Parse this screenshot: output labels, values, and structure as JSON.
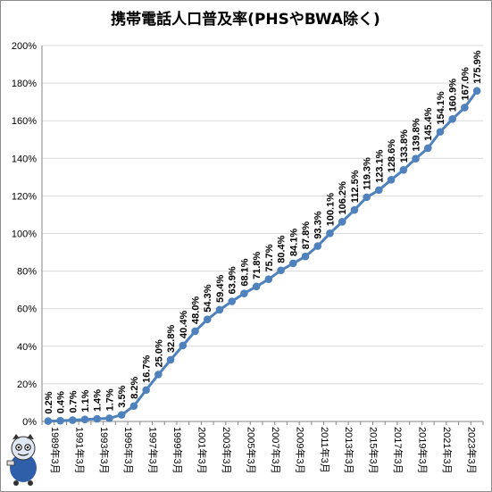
{
  "chart_data": {
    "type": "line",
    "title": "携帯電話人口普及率(PHSやBWA除く)",
    "xlabel": "",
    "ylabel": "",
    "ylim": [
      0,
      200
    ],
    "y_ticks": [
      "0%",
      "20%",
      "40%",
      "60%",
      "80%",
      "100%",
      "120%",
      "140%",
      "160%",
      "180%",
      "200%"
    ],
    "categories": [
      "1989年3月",
      "1990年3月",
      "1991年3月",
      "1992年3月",
      "1993年3月",
      "1994年3月",
      "1995年3月",
      "1996年3月",
      "1997年3月",
      "1998年3月",
      "1999年3月",
      "2000年3月",
      "2001年3月",
      "2002年3月",
      "2003年3月",
      "2004年3月",
      "2005年3月",
      "2006年3月",
      "2007年3月",
      "2008年3月",
      "2009年3月",
      "2010年3月",
      "2011年3月",
      "2012年3月",
      "2013年3月",
      "2014年3月",
      "2015年3月",
      "2016年3月",
      "2017年3月",
      "2018年3月",
      "2019年3月",
      "2020年3月",
      "2021年3月",
      "2022年3月",
      "2023年3月",
      "2024年3月"
    ],
    "x_tick_labels": [
      "1989年3月",
      "1991年3月",
      "1993年3月",
      "1995年3月",
      "1997年3月",
      "1999年3月",
      "2001年3月",
      "2003年3月",
      "2005年3月",
      "2007年3月",
      "2009年3月",
      "2011年3月",
      "2013年3月",
      "2015年3月",
      "2017年3月",
      "2019年3月",
      "2021年3月",
      "2023年3月"
    ],
    "series": [
      {
        "values": [
          0.2,
          0.4,
          0.7,
          1.1,
          1.4,
          1.7,
          3.5,
          8.2,
          16.7,
          25.0,
          32.8,
          40.4,
          48.0,
          54.3,
          59.4,
          63.9,
          68.1,
          71.8,
          75.7,
          80.4,
          84.1,
          87.8,
          93.3,
          100.1,
          106.2,
          112.5,
          119.3,
          123.1,
          128.6,
          133.8,
          139.8,
          145.4,
          154.1,
          160.9,
          167.0,
          175.9
        ],
        "data_labels": [
          "0.2%",
          "0.4%",
          "0.7%",
          "1.1%",
          "1.4%",
          "1.7%",
          "3.5%",
          "8.2%",
          "16.7%",
          "25.0%",
          "32.8%",
          "40.4%",
          "48.0%",
          "54.3%",
          "59.4%",
          "63.9%",
          "68.1%",
          "71.8%",
          "75.7%",
          "80.4%",
          "84.1%",
          "87.8%",
          "93.3%",
          "100.1%",
          "106.2%",
          "112.5%",
          "119.3%",
          "123.1%",
          "128.6%",
          "133.8%",
          "139.8%",
          "145.4%",
          "154.1%",
          "160.9%",
          "167.0%",
          "175.9%"
        ]
      }
    ],
    "grid": true,
    "legend": "none",
    "colors": {
      "line": "#4f81bd",
      "grid": "#d9d9d9",
      "axis": "#868686"
    }
  }
}
